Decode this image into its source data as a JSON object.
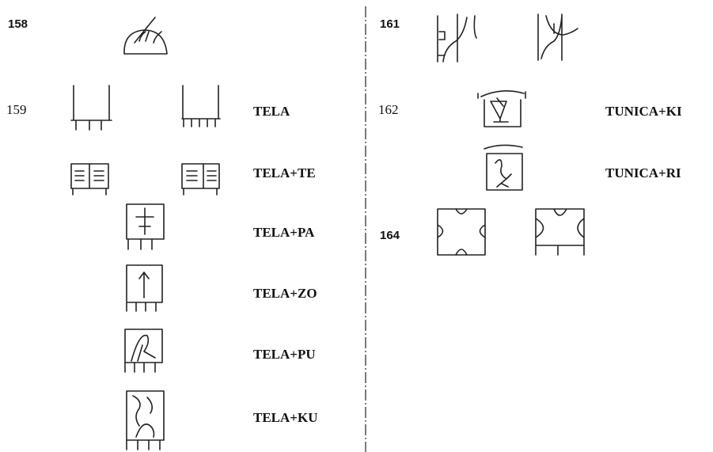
{
  "left": {
    "entries": [
      {
        "number": "158"
      },
      {
        "number": "159",
        "labels": [
          "TELA",
          "TELA+TE",
          "TELA+PA",
          "TELA+ZO",
          "TELA+PU",
          "TELA+KU"
        ]
      }
    ]
  },
  "right": {
    "entries": [
      {
        "number": "161"
      },
      {
        "number": "162",
        "labels": [
          "TUNICA+KI",
          "TUNICA+RI"
        ]
      },
      {
        "number": "164"
      }
    ]
  }
}
